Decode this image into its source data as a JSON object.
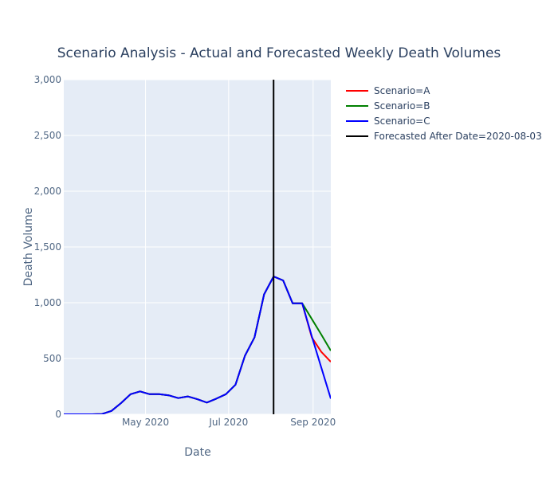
{
  "chart_data": {
    "type": "line",
    "title": "Scenario Analysis - Actual and Forecasted Weekly Death Volumes",
    "xlabel": "Date",
    "ylabel": "Death Volume",
    "xlim": [
      "2020-03-02",
      "2020-09-14"
    ],
    "ylim": [
      0,
      3000
    ],
    "x_ticks": [
      {
        "date": "2020-05-01",
        "label": "May 2020"
      },
      {
        "date": "2020-07-01",
        "label": "Jul 2020"
      },
      {
        "date": "2020-09-01",
        "label": "Sep 2020"
      }
    ],
    "y_ticks": [
      {
        "value": 0,
        "label": "0"
      },
      {
        "value": 500,
        "label": "500"
      },
      {
        "value": 1000,
        "label": "1,000"
      },
      {
        "value": 1500,
        "label": "1,500"
      },
      {
        "value": 2000,
        "label": "2,000"
      },
      {
        "value": 2500,
        "label": "2,500"
      },
      {
        "value": 3000,
        "label": "3,000"
      }
    ],
    "grid": true,
    "legend_position": "top-right, outside plot",
    "series": [
      {
        "name": "Scenario=A",
        "color": "#ff0000",
        "x": [
          "2020-03-02",
          "2020-03-09",
          "2020-03-16",
          "2020-03-23",
          "2020-03-30",
          "2020-04-06",
          "2020-04-13",
          "2020-04-20",
          "2020-04-27",
          "2020-05-04",
          "2020-05-11",
          "2020-05-18",
          "2020-05-25",
          "2020-06-01",
          "2020-06-08",
          "2020-06-15",
          "2020-06-22",
          "2020-06-29",
          "2020-07-06",
          "2020-07-13",
          "2020-07-20",
          "2020-07-27",
          "2020-08-03",
          "2020-08-10",
          "2020-08-17",
          "2020-08-24",
          "2020-08-31",
          "2020-09-07",
          "2020-09-14"
        ],
        "values": [
          0,
          0,
          0,
          0,
          2,
          30,
          100,
          180,
          205,
          180,
          180,
          170,
          145,
          160,
          135,
          105,
          140,
          180,
          265,
          525,
          690,
          1075,
          1235,
          1200,
          995,
          995,
          690,
          560,
          470
        ]
      },
      {
        "name": "Scenario=B",
        "color": "#008000",
        "x": [
          "2020-03-02",
          "2020-03-09",
          "2020-03-16",
          "2020-03-23",
          "2020-03-30",
          "2020-04-06",
          "2020-04-13",
          "2020-04-20",
          "2020-04-27",
          "2020-05-04",
          "2020-05-11",
          "2020-05-18",
          "2020-05-25",
          "2020-06-01",
          "2020-06-08",
          "2020-06-15",
          "2020-06-22",
          "2020-06-29",
          "2020-07-06",
          "2020-07-13",
          "2020-07-20",
          "2020-07-27",
          "2020-08-03",
          "2020-08-10",
          "2020-08-17",
          "2020-08-24",
          "2020-08-31",
          "2020-09-07",
          "2020-09-14"
        ],
        "values": [
          0,
          0,
          0,
          0,
          2,
          30,
          100,
          180,
          205,
          180,
          180,
          170,
          145,
          160,
          135,
          105,
          140,
          180,
          265,
          525,
          690,
          1075,
          1235,
          1200,
          995,
          995,
          855,
          715,
          570
        ]
      },
      {
        "name": "Scenario=C",
        "color": "#0000ff",
        "x": [
          "2020-03-02",
          "2020-03-09",
          "2020-03-16",
          "2020-03-23",
          "2020-03-30",
          "2020-04-06",
          "2020-04-13",
          "2020-04-20",
          "2020-04-27",
          "2020-05-04",
          "2020-05-11",
          "2020-05-18",
          "2020-05-25",
          "2020-06-01",
          "2020-06-08",
          "2020-06-15",
          "2020-06-22",
          "2020-06-29",
          "2020-07-06",
          "2020-07-13",
          "2020-07-20",
          "2020-07-27",
          "2020-08-03",
          "2020-08-10",
          "2020-08-17",
          "2020-08-24",
          "2020-08-31",
          "2020-09-07",
          "2020-09-14"
        ],
        "values": [
          0,
          0,
          0,
          0,
          2,
          30,
          100,
          180,
          205,
          180,
          180,
          170,
          145,
          160,
          135,
          105,
          140,
          180,
          265,
          525,
          690,
          1075,
          1235,
          1200,
          995,
          995,
          700,
          420,
          140
        ]
      },
      {
        "name": "Forecasted After Date=2020-08-03",
        "color": "#000000",
        "x": [
          "2020-08-03",
          "2020-08-03"
        ],
        "values": [
          0,
          3000
        ]
      }
    ]
  }
}
